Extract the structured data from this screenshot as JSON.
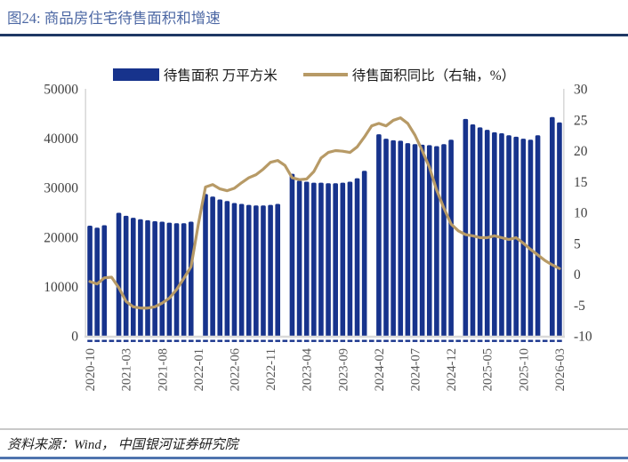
{
  "figure": {
    "title": "图24: 商品房住宅待售面积和增速",
    "source": "资料来源：Wind， 中国银河证券研究院"
  },
  "colors": {
    "title_blue": "#4d68a4",
    "top_rule": "#1f3864",
    "bottom_rule": "#4f74ae",
    "bar": "#17338c",
    "line": "#b79a66",
    "y_axis_text": "#404040",
    "x_axis_text": "#595959",
    "spine": "#d9d9d9"
  },
  "chart_data": {
    "type": "bar",
    "subtype": "bar-line-combo",
    "title": "图24: 商品房住宅待售面积和增速",
    "grid": false,
    "legend_position": "top",
    "categories": [
      "2020-10",
      "2020-11",
      "2020-12",
      "2021-01",
      "2021-02",
      "2021-03",
      "2021-04",
      "2021-05",
      "2021-06",
      "2021-07",
      "2021-08",
      "2021-09",
      "2021-10",
      "2021-11",
      "2021-12",
      "2022-01",
      "2022-02",
      "2022-03",
      "2022-04",
      "2022-05",
      "2022-06",
      "2022-07",
      "2022-08",
      "2022-09",
      "2022-10",
      "2022-11",
      "2022-12",
      "2023-01",
      "2023-02",
      "2023-03",
      "2023-04",
      "2023-05",
      "2023-06",
      "2023-07",
      "2023-08",
      "2023-09",
      "2023-10",
      "2023-11",
      "2023-12",
      "2024-01",
      "2024-02",
      "2024-03",
      "2024-04",
      "2024-05",
      "2024-06",
      "2024-07",
      "2024-08",
      "2024-09",
      "2024-10",
      "2024-11",
      "2024-12",
      "2025-01",
      "2025-02",
      "2025-03",
      "2025-04",
      "2025-05",
      "2025-06",
      "2025-07",
      "2025-08",
      "2025-09",
      "2025-10",
      "2025-11",
      "2025-12",
      "2026-01",
      "2026-02",
      "2026-03"
    ],
    "series": [
      {
        "name": "待售面积 万平方米",
        "type": "bar",
        "axis": "left",
        "color": "#17338c",
        "values": [
          22300,
          21900,
          22400,
          null,
          24900,
          24300,
          23900,
          23600,
          23400,
          23200,
          23100,
          22900,
          22800,
          22800,
          23100,
          null,
          28700,
          28200,
          27600,
          27300,
          26900,
          26700,
          26500,
          26400,
          26400,
          26500,
          26700,
          null,
          32800,
          31400,
          31200,
          31000,
          31000,
          30900,
          30900,
          31000,
          31200,
          31900,
          33400,
          null,
          40800,
          39900,
          39600,
          39500,
          39000,
          38800,
          38700,
          38600,
          38400,
          38800,
          39700,
          null,
          43900,
          42800,
          42200,
          41700,
          41200,
          41000,
          40600,
          40300,
          39900,
          39700,
          40600,
          null,
          44300,
          43200
        ]
      },
      {
        "name": "待售面积同比（右轴，%）",
        "type": "line",
        "axis": "right",
        "color": "#b79a66",
        "values": [
          -1.2,
          -1.6,
          -0.6,
          -0.5,
          -2.2,
          -4.4,
          -5.3,
          -5.5,
          -5.5,
          -5.3,
          -4.7,
          -3.9,
          -2.5,
          -0.7,
          1.2,
          8.0,
          14.1,
          14.5,
          13.8,
          13.5,
          13.9,
          14.8,
          15.6,
          16.1,
          17.0,
          18.1,
          18.4,
          17.6,
          15.6,
          15.3,
          15.4,
          16.6,
          18.8,
          19.7,
          20.0,
          19.9,
          19.7,
          20.6,
          22.2,
          24.0,
          24.4,
          24.0,
          24.9,
          25.3,
          24.4,
          22.5,
          20.0,
          17.3,
          13.6,
          10.7,
          8.1,
          7.0,
          6.4,
          6.2,
          5.9,
          5.9,
          6.2,
          5.9,
          5.6,
          5.9,
          5.0,
          4.0,
          3.1,
          2.2,
          1.5,
          0.9
        ]
      }
    ],
    "left_axis": {
      "min": 0,
      "max": 50000,
      "ticks": [
        0,
        10000,
        20000,
        30000,
        40000,
        50000
      ]
    },
    "right_axis": {
      "min": -10,
      "max": 30,
      "ticks": [
        -10,
        -5,
        0,
        5,
        10,
        15,
        20,
        25,
        30
      ]
    },
    "x_tick_every": 5,
    "x_tick_labels": [
      "2020-10",
      "2021-03",
      "2021-08",
      "2022-01",
      "2022-06",
      "2022-11",
      "2023-04",
      "2023-09",
      "2024-02",
      "2024-07",
      "2024-12",
      "2025-05",
      "2025-10",
      "2026-03"
    ]
  }
}
